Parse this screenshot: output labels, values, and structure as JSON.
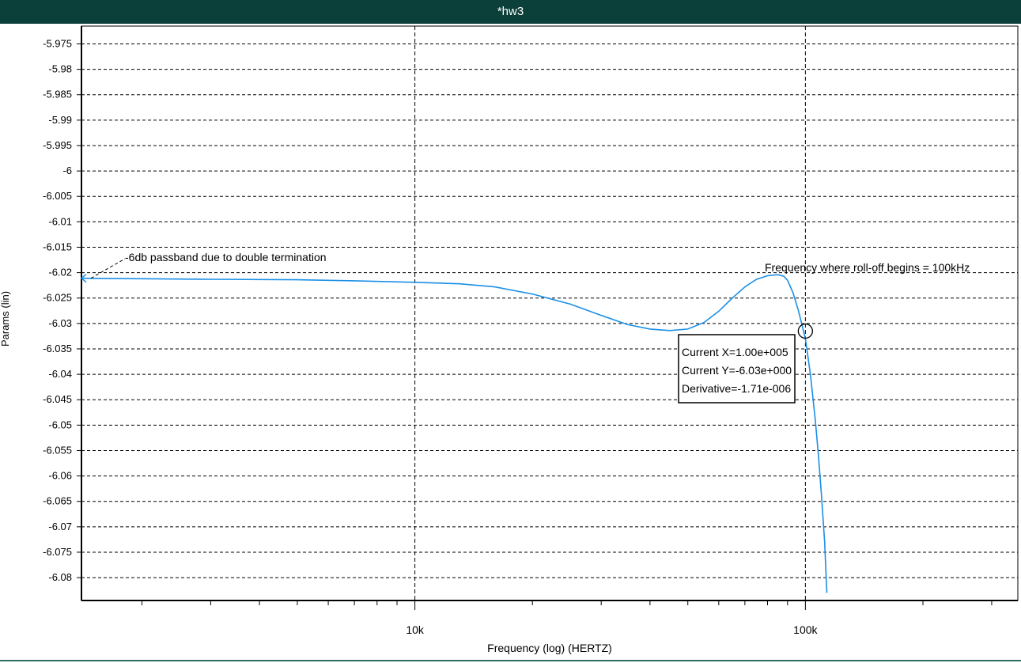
{
  "window": {
    "title": "*hw3"
  },
  "colors": {
    "titlebar_bg": "#0a3f3a",
    "trace": "#1a8fe6",
    "grid": "#000000",
    "background": "#ffffff"
  },
  "chart_data": {
    "type": "line",
    "title": "",
    "xlabel": "Frequency (log) (HERTZ)",
    "ylabel": "Params (lin)",
    "x_scale": "log",
    "x_ticks": [
      {
        "value": 10000,
        "label": "10k"
      },
      {
        "value": 100000,
        "label": "100k"
      }
    ],
    "xlim": [
      1400,
      350000
    ],
    "y_ticks": [
      "-5.975",
      "-5.98",
      "-5.985",
      "-5.99",
      "-5.995",
      "-6",
      "-6.005",
      "-6.01",
      "-6.015",
      "-6.02",
      "-6.025",
      "-6.03",
      "-6.035",
      "-6.04",
      "-6.045",
      "-6.05",
      "-6.055",
      "-6.06",
      "-6.065",
      "-6.07",
      "-6.075",
      "-6.08"
    ],
    "ylim": [
      -6.0845,
      -5.9715
    ],
    "grid": true,
    "series": [
      {
        "x": [
          1400,
          2000,
          3000,
          5000,
          7000,
          10000,
          13000,
          16000,
          20000,
          25000,
          30000,
          35000,
          40000,
          45000,
          50000,
          55000,
          60000,
          65000,
          70000,
          75000,
          80000,
          85000,
          88000,
          90000,
          93000,
          96000,
          100000,
          103000,
          106000,
          108000,
          110000,
          112000,
          113500
        ],
        "y": [
          -6.0211,
          -6.0212,
          -6.0213,
          -6.0214,
          -6.0216,
          -6.0219,
          -6.0222,
          -6.0228,
          -6.0242,
          -6.0262,
          -6.0284,
          -6.0302,
          -6.0311,
          -6.0314,
          -6.0311,
          -6.0298,
          -6.0276,
          -6.025,
          -6.0228,
          -6.0213,
          -6.0206,
          -6.0204,
          -6.0207,
          -6.0215,
          -6.024,
          -6.0275,
          -6.033,
          -6.04,
          -6.049,
          -6.056,
          -6.064,
          -6.073,
          -6.083
        ]
      }
    ],
    "annotations": [
      {
        "text": "-6db passband due to double termination"
      },
      {
        "text": "Frequency where roll-off begins = 100kHz"
      }
    ],
    "cursor": {
      "x": 100000,
      "y": -6.0315,
      "readout": [
        "Current X=1.00e+005",
        "Current Y=-6.03e+000",
        "Derivative=-1.71e-006"
      ]
    }
  }
}
